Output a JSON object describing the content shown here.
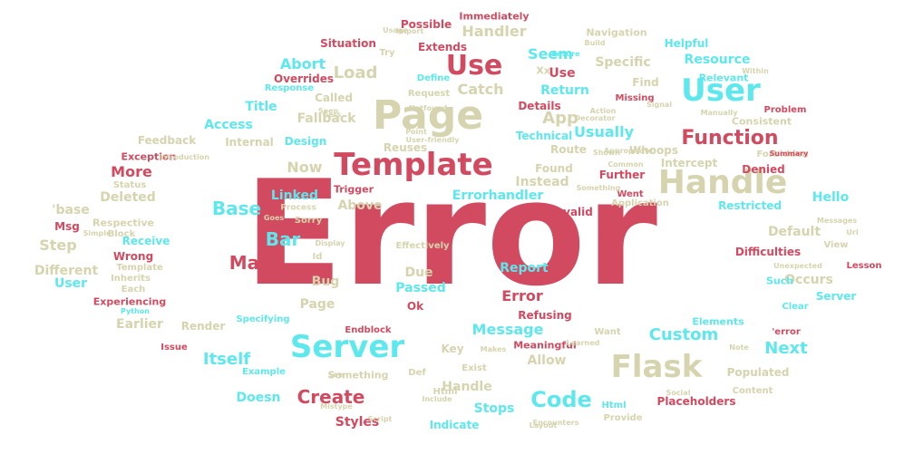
{
  "colors": {
    "red": "#d24a5f",
    "cyan": "#5de8ee",
    "tan": "#d6d4ae"
  },
  "words": [
    "Error",
    "Page",
    "Template",
    "Handle",
    "Server",
    "Flask",
    "User",
    "Use",
    "Function",
    "Code",
    "Create",
    "Base",
    "Main",
    "Bar",
    "Itself",
    "Custom",
    "Next",
    "Message",
    "Abort",
    "Load",
    "Seem",
    "Handler",
    "Catch",
    "Return",
    "Specific",
    "Resource",
    "Usually",
    "App",
    "Access",
    "Title",
    "Fallback",
    "Called",
    "Response",
    "Overrides",
    "Situation",
    "Extends",
    "Possible",
    "Immediately",
    "Navigation",
    "Helpful",
    "Relevant",
    "Technical",
    "Details",
    "Find",
    "Consistent",
    "Internal",
    "Design",
    "Feedback",
    "Exception",
    "More",
    "Now",
    "Deleted",
    "'base",
    "Msg",
    "Step",
    "Different",
    "User",
    "Respective",
    "Receive",
    "Wrong",
    "Linked",
    "Trigger",
    "Errorhandler",
    "Instead",
    "Above",
    "Sorry",
    "Route",
    "Whoops",
    "Found",
    "Further",
    "Intercept",
    "Denied",
    "Hello",
    "Restricted",
    "Default",
    "Difficulties",
    "Invalid",
    "Reuses",
    "Report",
    "Due",
    "Bug",
    "Passed",
    "Page",
    "Ok",
    "Error",
    "Occurs",
    "Such",
    "Server",
    "Render",
    "Earlier",
    "Specifying",
    "Experiencing",
    "Refusing",
    "Endblock",
    "Elements",
    "Meaningful",
    "Key",
    "Allow",
    "Populated",
    "Doesn",
    "Handle",
    "Stops",
    "Indicate",
    "Styles",
    "Placeholders",
    "Something",
    "Def",
    "Html",
    "Html",
    "Use",
    "Xx",
    "Missing",
    "Define",
    "Request",
    "Effectively",
    "Template",
    "Block",
    "Each",
    "Status",
    "Application",
    "Went",
    "Import",
    "Build",
    "Ensure",
    "Try",
    "Common",
    "Forbidden",
    "Problem",
    "Summary",
    "Signal",
    "View",
    "Uri",
    "Lesson",
    "Clear",
    "Want",
    "Exist",
    "Learned",
    "Makes",
    "Inherits",
    "Python",
    "Issue",
    "Mistype",
    "Layout",
    "Provide",
    "Content",
    "Example",
    "Process",
    "Display",
    "Id",
    "Simple",
    "Introduction",
    "Decorator",
    "Manually",
    "Goes",
    "'error",
    "Note",
    "Point",
    "Unexpected",
    "Messages",
    "Within",
    "Encounters",
    "Social",
    "Include",
    "Script",
    "User-friendly",
    "Notfound",
    "Gets",
    "Seen",
    "See",
    "Something",
    "Shown",
    "Action",
    "Appropriate",
    "Usage",
    "Import"
  ]
}
